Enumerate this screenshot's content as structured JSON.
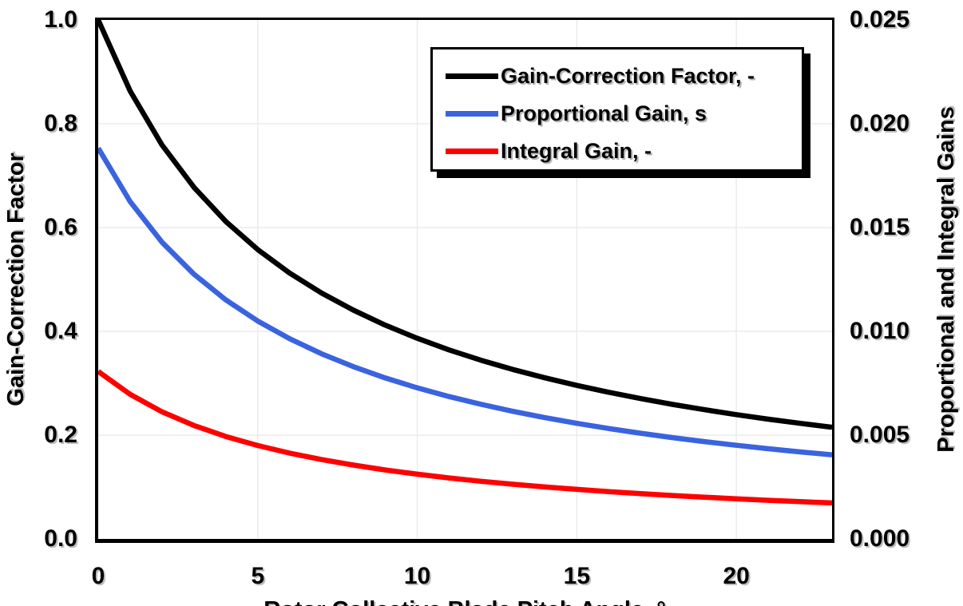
{
  "chart_data": {
    "type": "line",
    "title": "",
    "xlabel": "Rotor Collective Blade Pitch Angle, °",
    "ylabel_left": "Gain-Correction Factor",
    "ylabel_right": "Proportional and Integral Gains",
    "xlim": [
      0,
      23
    ],
    "ylim_left": [
      0.0,
      1.0
    ],
    "ylim_right": [
      0.0,
      0.025
    ],
    "grid": true,
    "grid_color": "#EBEBEB",
    "legend_position": "top-right-inside",
    "xticks": {
      "values": [
        0,
        5,
        10,
        15,
        20
      ],
      "labels": [
        "0",
        "5",
        "10",
        "15",
        "20"
      ]
    },
    "yticks_left": {
      "values": [
        0.0,
        0.2,
        0.4,
        0.6,
        0.8,
        1.0
      ],
      "labels": [
        "0.0",
        "0.2",
        "0.4",
        "0.6",
        "0.8",
        "1.0"
      ]
    },
    "yticks_right": {
      "values": [
        0.0,
        0.005,
        0.01,
        0.015,
        0.02,
        0.025
      ],
      "labels": [
        "0.000",
        "0.005",
        "0.010",
        "0.015",
        "0.020",
        "0.025"
      ]
    },
    "x": [
      0,
      1,
      2,
      3,
      4,
      5,
      6,
      7,
      8,
      9,
      10,
      11,
      12,
      13,
      14,
      15,
      16,
      17,
      18,
      19,
      20,
      21,
      22,
      23
    ],
    "series": [
      {
        "name": "Gain-Correction Factor, -",
        "axis": "left",
        "color": "#000000",
        "values": [
          1.0,
          0.8631,
          0.7591,
          0.6775,
          0.6117,
          0.5576,
          0.5123,
          0.4738,
          0.4407,
          0.4119,
          0.3866,
          0.3642,
          0.3443,
          0.3265,
          0.3104,
          0.2959,
          0.2826,
          0.2705,
          0.2593,
          0.2491,
          0.2396,
          0.2308,
          0.2227,
          0.2151
        ]
      },
      {
        "name": "Proportional Gain, s",
        "axis": "right",
        "color": "#3A63DF",
        "values": [
          0.018827,
          0.016249,
          0.014291,
          0.012755,
          0.011517,
          0.010498,
          0.009645,
          0.00892,
          0.008296,
          0.007754,
          0.007278,
          0.006858,
          0.006483,
          0.006147,
          0.005844,
          0.00557,
          0.00532,
          0.005092,
          0.004882,
          0.004689,
          0.004511,
          0.004346,
          0.004192,
          0.004049
        ]
      },
      {
        "name": "Integral Gain, -",
        "axis": "right",
        "color": "#FF0000",
        "values": [
          0.008069,
          0.006964,
          0.006125,
          0.005467,
          0.004936,
          0.004499,
          0.004134,
          0.003823,
          0.003556,
          0.003323,
          0.003119,
          0.002939,
          0.002778,
          0.002634,
          0.002505,
          0.002387,
          0.00228,
          0.002182,
          0.002092,
          0.00201,
          0.001933,
          0.001863,
          0.001797,
          0.001735
        ]
      }
    ]
  },
  "colors": {
    "series_black": "#000000",
    "series_blue": "#3A63DF",
    "series_red": "#FF0000",
    "grid": "#EBEBEB",
    "frame": "#000000",
    "background": "#FFFFFF"
  }
}
